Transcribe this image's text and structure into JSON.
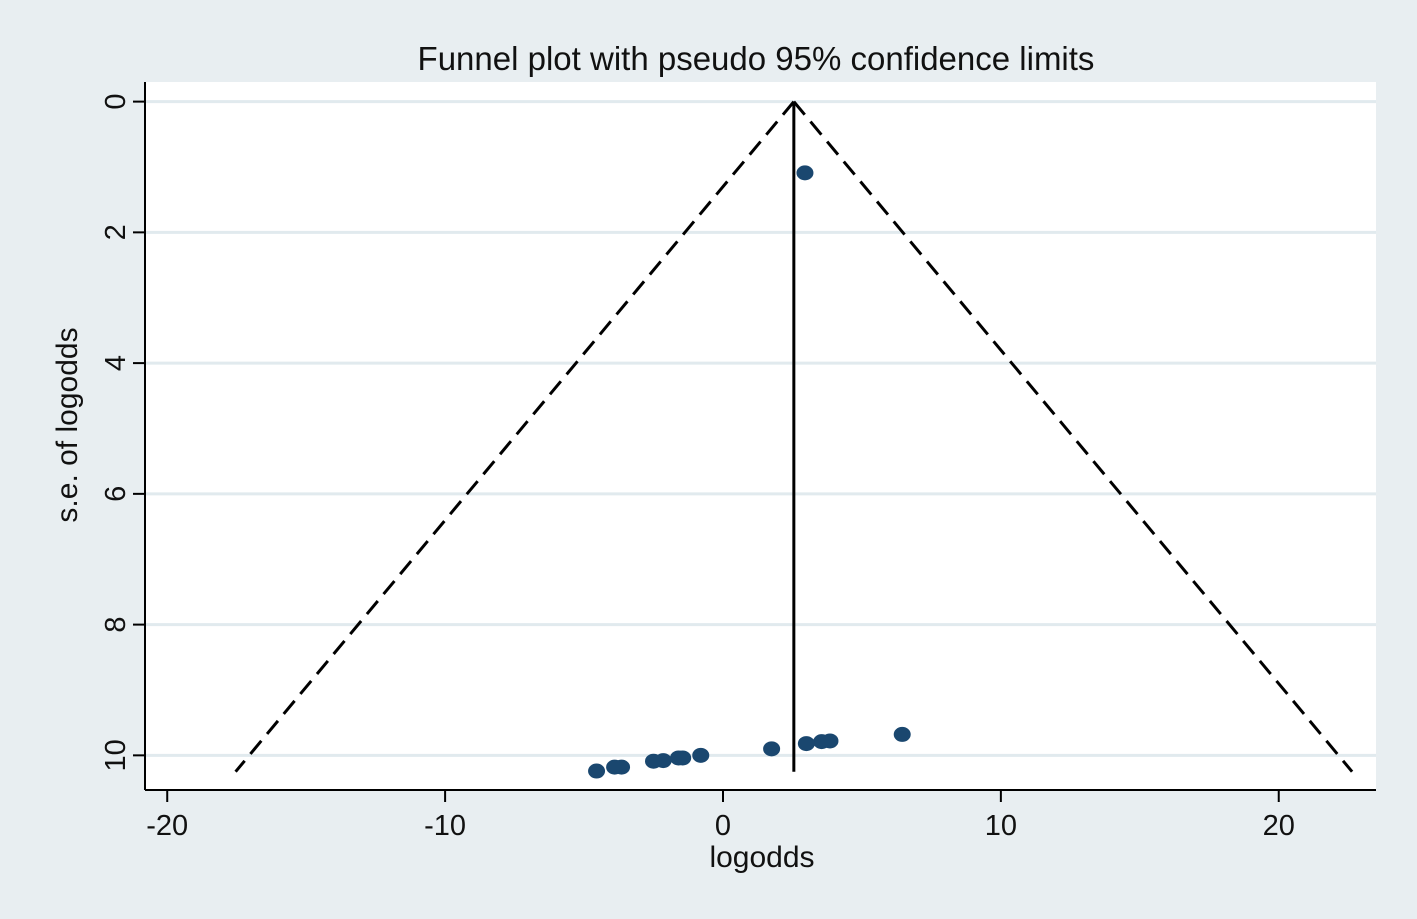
{
  "chart_data": {
    "type": "scatter",
    "title": "Funnel plot with pseudo 95% confidence limits",
    "xlabel": "logodds",
    "ylabel": "s.e. of logodds",
    "xlim": [
      -20.8,
      23.5
    ],
    "ylim": [
      10.53,
      -0.3
    ],
    "y_reversed": true,
    "xticks": [
      -20,
      -10,
      0,
      10,
      20
    ],
    "xtick_labels": [
      "-20",
      "-10",
      "0",
      "10",
      "20"
    ],
    "yticks": [
      0,
      2,
      4,
      6,
      8,
      10
    ],
    "ytick_labels": [
      "0",
      "2",
      "4",
      "6",
      "8",
      "10"
    ],
    "grid": "horizontal",
    "pooled_estimate": 2.55,
    "se_max": 10.25,
    "funnel": {
      "apex": [
        2.55,
        0
      ],
      "lower_left": [
        -17.54,
        10.25
      ],
      "lower_right": [
        22.64,
        10.25
      ]
    },
    "points": [
      {
        "x": 2.95,
        "y": 1.09
      },
      {
        "x": 6.45,
        "y": 9.68
      },
      {
        "x": 3.85,
        "y": 9.78
      },
      {
        "x": 3.55,
        "y": 9.79
      },
      {
        "x": 3.0,
        "y": 9.82
      },
      {
        "x": 1.75,
        "y": 9.9
      },
      {
        "x": -0.8,
        "y": 10.0
      },
      {
        "x": -1.45,
        "y": 10.04
      },
      {
        "x": -1.6,
        "y": 10.04
      },
      {
        "x": -2.15,
        "y": 10.08
      },
      {
        "x": -2.5,
        "y": 10.09
      },
      {
        "x": -3.65,
        "y": 10.18
      },
      {
        "x": -3.9,
        "y": 10.18
      },
      {
        "x": -4.55,
        "y": 10.24
      }
    ],
    "colors": {
      "background": "#e8eef1",
      "plot_area": "#ffffff",
      "grid": "#e1eaee",
      "marker": "#1a476f",
      "lines": "#000000"
    }
  }
}
